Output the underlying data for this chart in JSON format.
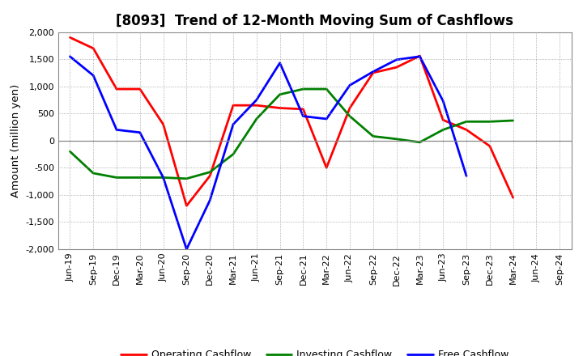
{
  "title": "[8093]  Trend of 12-Month Moving Sum of Cashflows",
  "ylabel": "Amount (million yen)",
  "ylim": [
    -2000,
    2000
  ],
  "yticks": [
    -2000,
    -1500,
    -1000,
    -500,
    0,
    500,
    1000,
    1500,
    2000
  ],
  "labels": [
    "Jun-19",
    "Sep-19",
    "Dec-19",
    "Mar-20",
    "Jun-20",
    "Sep-20",
    "Dec-20",
    "Mar-21",
    "Jun-21",
    "Sep-21",
    "Dec-21",
    "Mar-22",
    "Jun-22",
    "Sep-22",
    "Dec-22",
    "Mar-23",
    "Jun-23",
    "Sep-23",
    "Dec-23",
    "Mar-24",
    "Jun-24",
    "Sep-24"
  ],
  "operating": [
    1900,
    1700,
    950,
    950,
    300,
    -1200,
    -650,
    650,
    650,
    600,
    580,
    -500,
    600,
    1250,
    1350,
    1560,
    380,
    200,
    -100,
    -1050,
    null,
    null
  ],
  "investing": [
    -200,
    -600,
    -680,
    -680,
    -680,
    -700,
    -580,
    -250,
    400,
    850,
    950,
    950,
    450,
    80,
    30,
    -30,
    200,
    350,
    350,
    370,
    null,
    null
  ],
  "free": [
    1550,
    1200,
    200,
    150,
    -680,
    -2000,
    -1100,
    300,
    750,
    1430,
    450,
    400,
    1020,
    1270,
    1490,
    1550,
    730,
    -650,
    null,
    null,
    null,
    null
  ],
  "line_colors": {
    "operating": "#ff0000",
    "investing": "#008000",
    "free": "#0000ff"
  },
  "line_width": 2.0,
  "bg_color": "#ffffff",
  "plot_bg_color": "#ffffff",
  "grid_color": "#999999",
  "zero_line_color": "#888888",
  "title_fontsize": 12,
  "legend_fontsize": 9,
  "tick_fontsize": 8
}
